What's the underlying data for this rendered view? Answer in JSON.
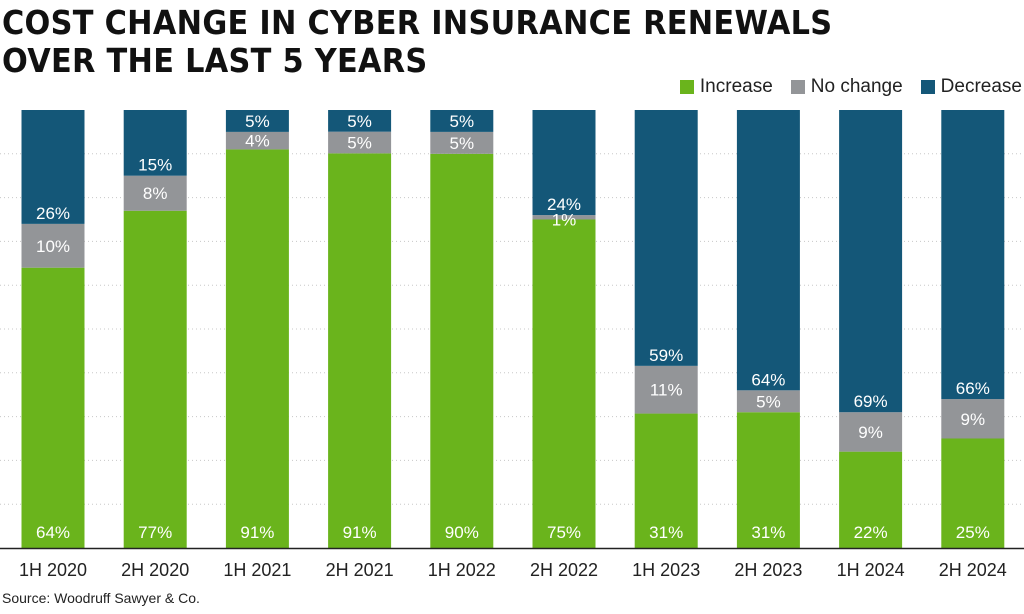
{
  "title_line1": "COST CHANGE IN CYBER INSURANCE RENEWALS",
  "title_line2": "OVER THE LAST 5 YEARS",
  "source": "Source: Woodruff Sawyer & Co.",
  "colors": {
    "increase": "#6ab41c",
    "no_change": "#939598",
    "decrease": "#145778"
  },
  "chart_data": {
    "type": "bar",
    "stacked": true,
    "categories": [
      "1H 2020",
      "2H 2020",
      "1H 2021",
      "2H 2021",
      "1H 2022",
      "2H 2022",
      "1H 2023",
      "2H 2023",
      "1H 2024",
      "2H 2024"
    ],
    "series": [
      {
        "name": "Increase",
        "values": [
          64,
          77,
          91,
          91,
          90,
          75,
          31,
          31,
          22,
          25
        ],
        "labels": [
          "64%",
          "77%",
          "91%",
          "91%",
          "90%",
          "75%",
          "31%",
          "31%",
          "22%",
          "25%"
        ]
      },
      {
        "name": "No change",
        "values": [
          10,
          8,
          4,
          5,
          5,
          1,
          11,
          5,
          9,
          9
        ],
        "labels": [
          "10%",
          "8%",
          "4%",
          "5%",
          "5%",
          "1%",
          "11%",
          "5%",
          "9%",
          "9%"
        ]
      },
      {
        "name": "Decrease",
        "values": [
          26,
          15,
          5,
          5,
          5,
          24,
          59,
          64,
          69,
          66
        ],
        "labels": [
          "26%",
          "15%",
          "5%",
          "5%",
          "5%",
          "24%",
          "59%",
          "64%",
          "69%",
          "66%"
        ]
      }
    ],
    "ylim": [
      0,
      100
    ],
    "grid": true,
    "legend": "top-right"
  }
}
